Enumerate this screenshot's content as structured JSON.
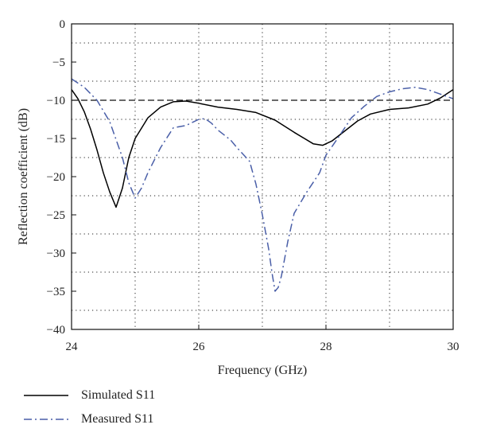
{
  "chart_data": {
    "type": "line",
    "xlabel": "Frequency (GHz)",
    "ylabel": "Reflection coefficient (dB)",
    "xlim": [
      24,
      30
    ],
    "ylim": [
      -40,
      0
    ],
    "xticks": [
      24,
      26,
      28,
      30
    ],
    "yticks": [
      0,
      -5,
      -10,
      -15,
      -20,
      -25,
      -30,
      -35,
      -40
    ],
    "grid": "dotted",
    "reference_line": {
      "y": -10,
      "style": "dashed"
    },
    "legend_position": "bottom-left outside",
    "series": [
      {
        "name": "Simulated S11",
        "color": "#000000",
        "style": "solid",
        "x": [
          24.0,
          24.1,
          24.2,
          24.3,
          24.4,
          24.5,
          24.6,
          24.7,
          24.8,
          24.9,
          25.0,
          25.2,
          25.4,
          25.6,
          25.8,
          26.0,
          26.3,
          26.6,
          26.9,
          27.2,
          27.5,
          27.8,
          27.95,
          28.1,
          28.3,
          28.5,
          28.7,
          29.0,
          29.3,
          29.6,
          29.8,
          30.0
        ],
        "y": [
          -8.6,
          -9.8,
          -11.5,
          -13.8,
          -16.5,
          -19.5,
          -22.0,
          -24.0,
          -21.5,
          -17.5,
          -15.0,
          -12.3,
          -10.9,
          -10.2,
          -10.1,
          -10.4,
          -10.9,
          -11.2,
          -11.6,
          -12.6,
          -14.2,
          -15.7,
          -15.9,
          -15.3,
          -14.0,
          -12.7,
          -11.8,
          -11.2,
          -11.0,
          -10.5,
          -9.7,
          -8.6
        ]
      },
      {
        "name": "Measured S11",
        "color": "#4a5fa8",
        "style": "dashdot",
        "x": [
          24.0,
          24.2,
          24.4,
          24.6,
          24.8,
          24.9,
          25.0,
          25.1,
          25.2,
          25.4,
          25.6,
          25.8,
          26.0,
          26.1,
          26.2,
          26.3,
          26.5,
          26.6,
          26.8,
          26.9,
          27.0,
          27.1,
          27.15,
          27.2,
          27.25,
          27.3,
          27.4,
          27.5,
          27.7,
          27.9,
          28.0,
          28.2,
          28.4,
          28.6,
          28.8,
          29.0,
          29.2,
          29.4,
          29.6,
          29.8,
          30.0
        ],
        "y": [
          -7.2,
          -8.3,
          -10.0,
          -12.8,
          -17.5,
          -20.8,
          -22.8,
          -21.5,
          -19.5,
          -16.2,
          -13.6,
          -13.3,
          -12.5,
          -12.4,
          -13.0,
          -13.9,
          -15.2,
          -16.2,
          -18.0,
          -21.0,
          -25.0,
          -29.5,
          -32.5,
          -35.0,
          -34.5,
          -33.0,
          -28.5,
          -24.8,
          -22.0,
          -19.5,
          -17.2,
          -14.8,
          -12.3,
          -10.8,
          -9.5,
          -8.9,
          -8.5,
          -8.3,
          -8.6,
          -9.2,
          -9.8
        ]
      }
    ]
  }
}
